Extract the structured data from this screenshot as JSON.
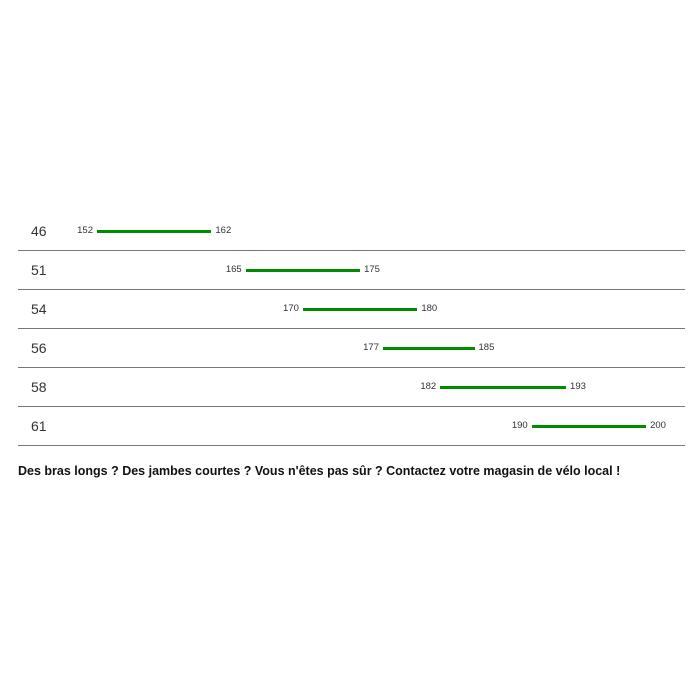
{
  "chart_data": {
    "type": "range-bar",
    "bar_color": "#008c00",
    "categories": [
      "46",
      "51",
      "54",
      "56",
      "58",
      "61"
    ],
    "ranges": [
      [
        152,
        162
      ],
      [
        165,
        175
      ],
      [
        170,
        180
      ],
      [
        177,
        185
      ],
      [
        182,
        193
      ],
      [
        190,
        200
      ]
    ]
  },
  "note": "Des bras longs ? Des jambes courtes ? Vous n'êtes pas sûr ? Contactez votre magasin de vélo local !"
}
